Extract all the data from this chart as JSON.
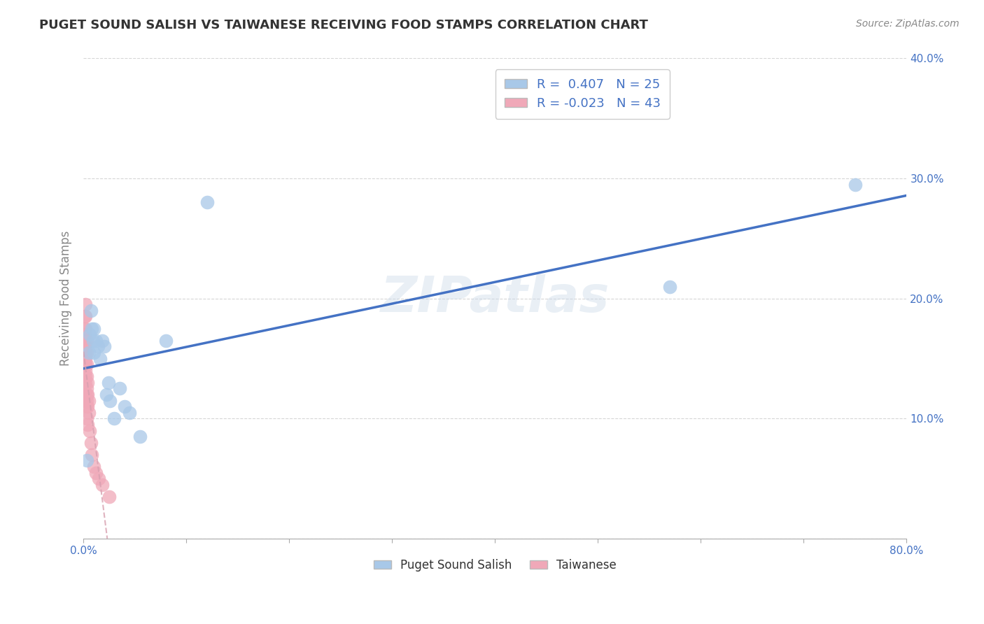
{
  "title": "PUGET SOUND SALISH VS TAIWANESE RECEIVING FOOD STAMPS CORRELATION CHART",
  "source": "Source: ZipAtlas.com",
  "ylabel_label": "Receiving Food Stamps",
  "legend_label1": "Puget Sound Salish",
  "legend_label2": "Taiwanese",
  "r1": 0.407,
  "n1": 25,
  "r2": -0.023,
  "n2": 43,
  "xlim": [
    0.0,
    0.8
  ],
  "ylim": [
    0.0,
    0.4
  ],
  "xticks": [
    0.0,
    0.1,
    0.2,
    0.3,
    0.4,
    0.5,
    0.6,
    0.7,
    0.8
  ],
  "yticks": [
    0.0,
    0.1,
    0.2,
    0.3,
    0.4
  ],
  "color_blue": "#a8c8e8",
  "color_pink": "#f0a8b8",
  "line_blue": "#4472c4",
  "line_pink": "#d8a0b0",
  "legend_text_color": "#4472c4",
  "watermark": "ZIPatlas",
  "puget_x": [
    0.003,
    0.005,
    0.006,
    0.007,
    0.008,
    0.009,
    0.01,
    0.01,
    0.012,
    0.014,
    0.016,
    0.018,
    0.02,
    0.022,
    0.024,
    0.026,
    0.03,
    0.035,
    0.04,
    0.045,
    0.055,
    0.08,
    0.12,
    0.57,
    0.75
  ],
  "puget_y": [
    0.065,
    0.155,
    0.17,
    0.19,
    0.175,
    0.165,
    0.155,
    0.175,
    0.165,
    0.16,
    0.15,
    0.165,
    0.16,
    0.12,
    0.13,
    0.115,
    0.1,
    0.125,
    0.11,
    0.105,
    0.085,
    0.165,
    0.28,
    0.21,
    0.295
  ],
  "taiwanese_x": [
    0.001,
    0.001,
    0.001,
    0.001,
    0.001,
    0.001,
    0.001,
    0.002,
    0.002,
    0.002,
    0.002,
    0.002,
    0.002,
    0.002,
    0.002,
    0.002,
    0.002,
    0.002,
    0.002,
    0.002,
    0.003,
    0.003,
    0.003,
    0.003,
    0.003,
    0.003,
    0.003,
    0.003,
    0.003,
    0.004,
    0.004,
    0.004,
    0.004,
    0.005,
    0.005,
    0.006,
    0.007,
    0.008,
    0.01,
    0.012,
    0.015,
    0.018,
    0.025
  ],
  "taiwanese_y": [
    0.155,
    0.17,
    0.185,
    0.16,
    0.175,
    0.15,
    0.145,
    0.195,
    0.185,
    0.175,
    0.165,
    0.16,
    0.155,
    0.15,
    0.145,
    0.14,
    0.135,
    0.13,
    0.12,
    0.115,
    0.165,
    0.155,
    0.145,
    0.135,
    0.125,
    0.12,
    0.115,
    0.11,
    0.1,
    0.13,
    0.12,
    0.11,
    0.095,
    0.115,
    0.105,
    0.09,
    0.08,
    0.07,
    0.06,
    0.055,
    0.05,
    0.045,
    0.035
  ],
  "background_color": "#ffffff",
  "grid_color": "#cccccc",
  "tick_color": "#4472c4",
  "axis_label_color": "#888888",
  "title_color": "#333333"
}
